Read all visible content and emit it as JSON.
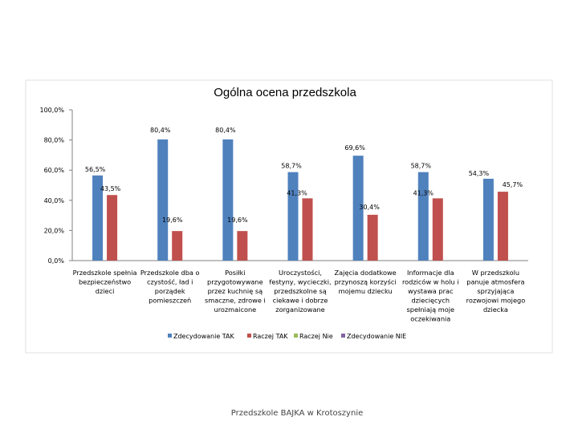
{
  "chart_data": {
    "type": "bar",
    "title": "Ogólna ocena przedszkola",
    "categories": [
      [
        "Przedszkole spełnia",
        "bezpieczeństwo",
        "dzieci"
      ],
      [
        "Przedszkole dba o",
        "czystość, ład i",
        "porządek",
        "pomieszczeń"
      ],
      [
        "Posiłki",
        "przygotowywane",
        "przez kuchnię są",
        "smaczne, zdrowe i",
        "urozmaicone"
      ],
      [
        "Uroczystości,",
        "festyny, wycieczki,",
        "przedszkolne są",
        "ciekawe i dobrze",
        "zorganizowane"
      ],
      [
        "Zajęcia dodatkowe",
        "przynoszą korzyści",
        "mojemu dziecku"
      ],
      [
        "Informacje dla",
        "rodziców w holu i",
        "wystawa prac",
        "dziecięcych",
        "spełniają moje",
        "oczekiwania"
      ],
      [
        "W przedszkolu",
        "panuje atmosfera",
        "sprzyjająca",
        "rozwojowi mojego",
        "dziecka"
      ]
    ],
    "series": [
      {
        "name": "Zdecydowanie TAK",
        "color": "#4F81BD",
        "values": [
          56.5,
          80.4,
          80.4,
          58.7,
          69.6,
          58.7,
          54.3
        ],
        "labels": [
          "56,5%",
          "80,4%",
          "80,4%",
          "58,7%",
          "69,6%",
          "58,7%",
          "54,3%"
        ]
      },
      {
        "name": "Raczej TAK",
        "color": "#C0504D",
        "values": [
          43.5,
          19.6,
          19.6,
          41.3,
          30.4,
          41.3,
          45.7
        ],
        "labels": [
          "43,5%",
          "19,6%",
          "19,6%",
          "41,3%",
          "30,4%",
          "41,3%",
          "45,7%"
        ]
      },
      {
        "name": "Raczej Nie",
        "color": "#9BBB59",
        "values": [
          0,
          0,
          0,
          0,
          0,
          0,
          0
        ],
        "labels": []
      },
      {
        "name": "Zdecydowanie NIE",
        "color": "#8064A2",
        "values": [
          0,
          0,
          0,
          0,
          0,
          0,
          0
        ],
        "labels": []
      }
    ],
    "y_ticks": [
      "0,0%",
      "20,0%",
      "40,0%",
      "60,0%",
      "80,0%",
      "100,0%"
    ],
    "ylim": [
      0,
      100
    ],
    "legend_position": "bottom",
    "grid": false
  },
  "footer": "Przedszkole BAJKA w Krotoszynie"
}
